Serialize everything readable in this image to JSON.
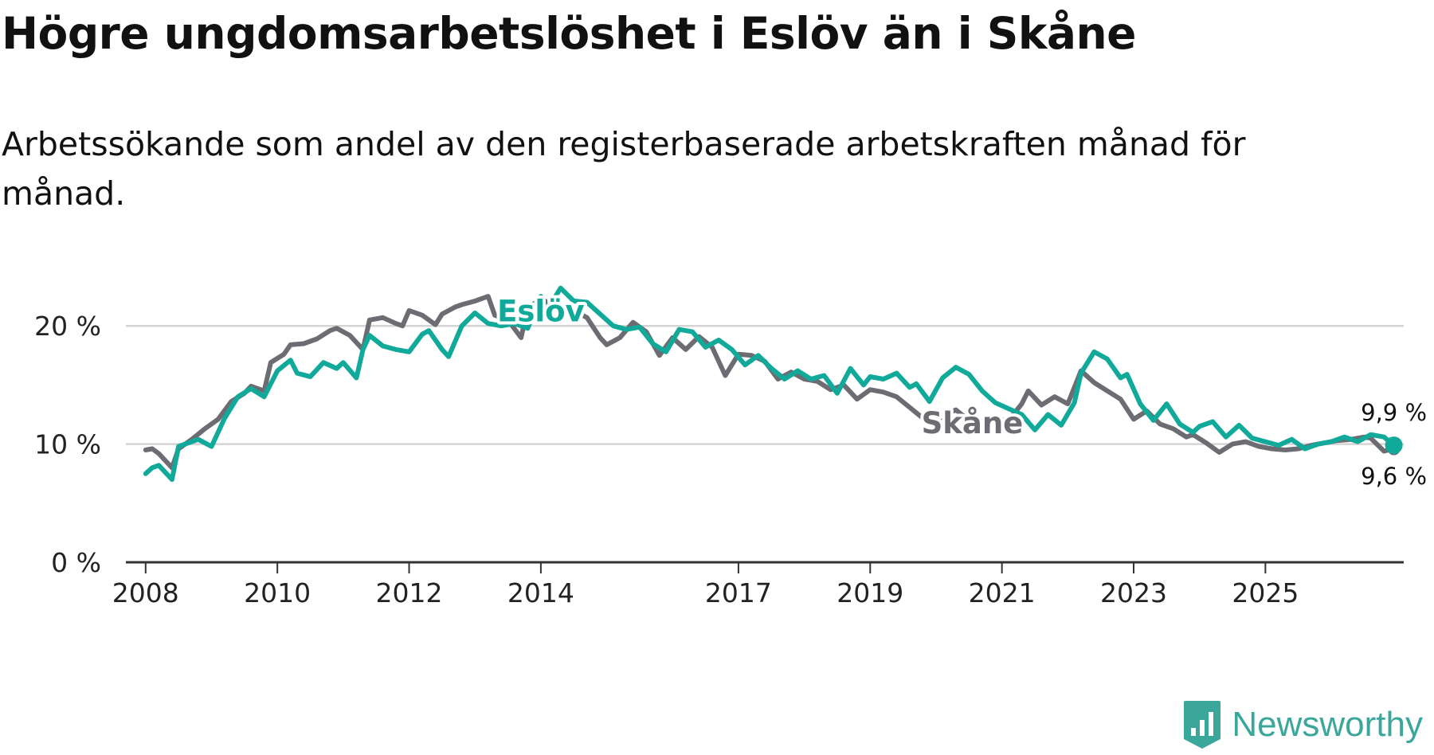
{
  "title": "Högre ungdomsarbetslöshet i Eslöv än i Skåne",
  "subtitle": "Arbetssökande som andel av den registerbaserade arbetskraften månad för månad.",
  "brand": "Newsworthy",
  "colors": {
    "eslov": "#10a99a",
    "skane": "#6d6c72",
    "grid": "#d4d4d4",
    "axis": "#333333"
  },
  "chart_data": {
    "type": "line",
    "title": "Högre ungdomsarbetslöshet i Eslöv än i Skåne",
    "ylabel": "",
    "xlabel": "",
    "ylim": [
      0,
      25
    ],
    "xlim": [
      2007.7,
      2027.1
    ],
    "y_ticks": [
      0,
      10,
      20
    ],
    "y_tick_labels": [
      "0 %",
      "10 %",
      "20 %"
    ],
    "x_ticks": [
      2008,
      2010,
      2012,
      2014,
      2017,
      2019,
      2021,
      2023,
      2025
    ],
    "x_tick_labels": [
      "2008",
      "2010",
      "2012",
      "2014",
      "2017",
      "2019",
      "2021",
      "2023",
      "2025"
    ],
    "grid": true,
    "series": [
      {
        "name": "Skåne",
        "label": "Skåne",
        "end_label": "9,6 %",
        "points": [
          [
            2008.0,
            9.5
          ],
          [
            2008.1,
            9.6
          ],
          [
            2008.2,
            9.2
          ],
          [
            2008.4,
            8.0
          ],
          [
            2008.5,
            9.6
          ],
          [
            2008.7,
            10.4
          ],
          [
            2008.9,
            11.3
          ],
          [
            2009.1,
            12.1
          ],
          [
            2009.3,
            13.6
          ],
          [
            2009.5,
            14.3
          ],
          [
            2009.6,
            14.9
          ],
          [
            2009.8,
            14.5
          ],
          [
            2009.9,
            16.9
          ],
          [
            2010.1,
            17.6
          ],
          [
            2010.2,
            18.4
          ],
          [
            2010.4,
            18.5
          ],
          [
            2010.6,
            18.9
          ],
          [
            2010.8,
            19.6
          ],
          [
            2010.9,
            19.8
          ],
          [
            2011.1,
            19.2
          ],
          [
            2011.3,
            18.0
          ],
          [
            2011.4,
            20.5
          ],
          [
            2011.6,
            20.7
          ],
          [
            2011.8,
            20.2
          ],
          [
            2011.9,
            20.0
          ],
          [
            2012.0,
            21.3
          ],
          [
            2012.2,
            20.9
          ],
          [
            2012.4,
            20.1
          ],
          [
            2012.5,
            21.0
          ],
          [
            2012.7,
            21.6
          ],
          [
            2012.8,
            21.8
          ],
          [
            2013.0,
            22.1
          ],
          [
            2013.2,
            22.5
          ],
          [
            2013.3,
            20.9
          ],
          [
            2013.5,
            20.5
          ],
          [
            2013.7,
            19.0
          ],
          [
            2013.8,
            21.5
          ],
          [
            2014.0,
            22.3
          ],
          [
            2014.2,
            21.7
          ],
          [
            2014.4,
            21.5
          ],
          [
            2014.5,
            21.3
          ],
          [
            2014.7,
            20.7
          ],
          [
            2014.9,
            19.0
          ],
          [
            2015.0,
            18.4
          ],
          [
            2015.2,
            19.0
          ],
          [
            2015.4,
            20.3
          ],
          [
            2015.6,
            19.5
          ],
          [
            2015.8,
            17.5
          ],
          [
            2016.0,
            19.0
          ],
          [
            2016.2,
            18.0
          ],
          [
            2016.4,
            19.1
          ],
          [
            2016.6,
            18.2
          ],
          [
            2016.8,
            15.8
          ],
          [
            2017.0,
            17.6
          ],
          [
            2017.2,
            17.5
          ],
          [
            2017.4,
            17.0
          ],
          [
            2017.6,
            15.5
          ],
          [
            2017.8,
            16.1
          ],
          [
            2018.0,
            15.5
          ],
          [
            2018.2,
            15.3
          ],
          [
            2018.4,
            14.6
          ],
          [
            2018.6,
            15.0
          ],
          [
            2018.8,
            13.8
          ],
          [
            2019.0,
            14.6
          ],
          [
            2019.2,
            14.4
          ],
          [
            2019.4,
            14.0
          ],
          [
            2019.6,
            13.1
          ],
          [
            2019.8,
            12.2
          ],
          [
            2019.9,
            11.4
          ],
          [
            2020.1,
            12.4
          ],
          [
            2020.3,
            12.9
          ],
          [
            2020.5,
            12.0
          ],
          [
            2020.7,
            11.6
          ],
          [
            2020.9,
            12.1
          ],
          [
            2021.1,
            12.0
          ],
          [
            2021.3,
            13.4
          ],
          [
            2021.4,
            14.5
          ],
          [
            2021.6,
            13.3
          ],
          [
            2021.8,
            14.0
          ],
          [
            2022.0,
            13.4
          ],
          [
            2022.2,
            16.2
          ],
          [
            2022.4,
            15.2
          ],
          [
            2022.6,
            14.5
          ],
          [
            2022.8,
            13.8
          ],
          [
            2023.0,
            12.1
          ],
          [
            2023.2,
            12.8
          ],
          [
            2023.4,
            11.7
          ],
          [
            2023.6,
            11.3
          ],
          [
            2023.8,
            10.6
          ],
          [
            2023.9,
            10.8
          ],
          [
            2024.1,
            10.1
          ],
          [
            2024.3,
            9.3
          ],
          [
            2024.5,
            10.0
          ],
          [
            2024.7,
            10.2
          ],
          [
            2024.9,
            9.8
          ],
          [
            2025.1,
            9.6
          ],
          [
            2025.3,
            9.5
          ],
          [
            2025.5,
            9.6
          ],
          [
            2025.7,
            9.9
          ],
          [
            2025.9,
            10.1
          ],
          [
            2026.1,
            10.3
          ],
          [
            2026.3,
            10.4
          ],
          [
            2026.5,
            10.6
          ],
          [
            2026.6,
            10.5
          ],
          [
            2026.8,
            9.4
          ],
          [
            2026.95,
            9.6
          ]
        ]
      },
      {
        "name": "Eslöv",
        "label": "Eslöv",
        "end_label": "9,9 %",
        "points": [
          [
            2008.0,
            7.5
          ],
          [
            2008.1,
            8.0
          ],
          [
            2008.2,
            8.2
          ],
          [
            2008.4,
            7.0
          ],
          [
            2008.5,
            9.8
          ],
          [
            2008.6,
            10.0
          ],
          [
            2008.8,
            10.4
          ],
          [
            2009.0,
            9.8
          ],
          [
            2009.2,
            12.2
          ],
          [
            2009.4,
            14.0
          ],
          [
            2009.6,
            14.7
          ],
          [
            2009.8,
            14.0
          ],
          [
            2010.0,
            16.2
          ],
          [
            2010.2,
            17.1
          ],
          [
            2010.3,
            16.0
          ],
          [
            2010.5,
            15.7
          ],
          [
            2010.7,
            16.9
          ],
          [
            2010.9,
            16.4
          ],
          [
            2011.0,
            16.9
          ],
          [
            2011.2,
            15.6
          ],
          [
            2011.3,
            18.0
          ],
          [
            2011.4,
            19.2
          ],
          [
            2011.6,
            18.3
          ],
          [
            2011.8,
            18.0
          ],
          [
            2012.0,
            17.8
          ],
          [
            2012.2,
            19.3
          ],
          [
            2012.3,
            19.6
          ],
          [
            2012.5,
            18.0
          ],
          [
            2012.6,
            17.4
          ],
          [
            2012.8,
            20.0
          ],
          [
            2013.0,
            21.1
          ],
          [
            2013.2,
            20.2
          ],
          [
            2013.4,
            20.0
          ],
          [
            2013.6,
            20.2
          ],
          [
            2013.8,
            19.8
          ],
          [
            2014.0,
            22.5
          ],
          [
            2014.1,
            21.4
          ],
          [
            2014.3,
            23.2
          ],
          [
            2014.5,
            22.1
          ],
          [
            2014.7,
            22.0
          ],
          [
            2014.9,
            21.0
          ],
          [
            2015.1,
            20.0
          ],
          [
            2015.3,
            19.7
          ],
          [
            2015.5,
            19.9
          ],
          [
            2015.7,
            18.5
          ],
          [
            2015.9,
            17.8
          ],
          [
            2016.1,
            19.7
          ],
          [
            2016.3,
            19.5
          ],
          [
            2016.5,
            18.2
          ],
          [
            2016.7,
            18.8
          ],
          [
            2016.9,
            18.0
          ],
          [
            2017.1,
            16.7
          ],
          [
            2017.3,
            17.5
          ],
          [
            2017.5,
            16.4
          ],
          [
            2017.7,
            15.5
          ],
          [
            2017.9,
            16.2
          ],
          [
            2018.1,
            15.5
          ],
          [
            2018.3,
            15.8
          ],
          [
            2018.5,
            14.3
          ],
          [
            2018.7,
            16.4
          ],
          [
            2018.9,
            15.0
          ],
          [
            2019.0,
            15.7
          ],
          [
            2019.2,
            15.5
          ],
          [
            2019.4,
            16.0
          ],
          [
            2019.6,
            14.8
          ],
          [
            2019.7,
            15.1
          ],
          [
            2019.9,
            13.6
          ],
          [
            2020.1,
            15.6
          ],
          [
            2020.3,
            16.5
          ],
          [
            2020.5,
            15.9
          ],
          [
            2020.7,
            14.5
          ],
          [
            2020.9,
            13.5
          ],
          [
            2021.1,
            13.0
          ],
          [
            2021.3,
            12.5
          ],
          [
            2021.5,
            11.2
          ],
          [
            2021.7,
            12.5
          ],
          [
            2021.9,
            11.6
          ],
          [
            2022.1,
            13.5
          ],
          [
            2022.2,
            16.0
          ],
          [
            2022.4,
            17.8
          ],
          [
            2022.6,
            17.2
          ],
          [
            2022.8,
            15.6
          ],
          [
            2022.9,
            15.9
          ],
          [
            2023.1,
            13.4
          ],
          [
            2023.3,
            12.0
          ],
          [
            2023.5,
            13.4
          ],
          [
            2023.7,
            11.7
          ],
          [
            2023.9,
            11.0
          ],
          [
            2024.0,
            11.5
          ],
          [
            2024.2,
            11.9
          ],
          [
            2024.4,
            10.6
          ],
          [
            2024.6,
            11.6
          ],
          [
            2024.8,
            10.5
          ],
          [
            2025.0,
            10.2
          ],
          [
            2025.2,
            9.9
          ],
          [
            2025.4,
            10.4
          ],
          [
            2025.6,
            9.6
          ],
          [
            2025.8,
            10.0
          ],
          [
            2026.0,
            10.2
          ],
          [
            2026.2,
            10.6
          ],
          [
            2026.4,
            10.2
          ],
          [
            2026.6,
            10.8
          ],
          [
            2026.8,
            10.6
          ],
          [
            2026.95,
            9.9
          ]
        ]
      }
    ]
  }
}
